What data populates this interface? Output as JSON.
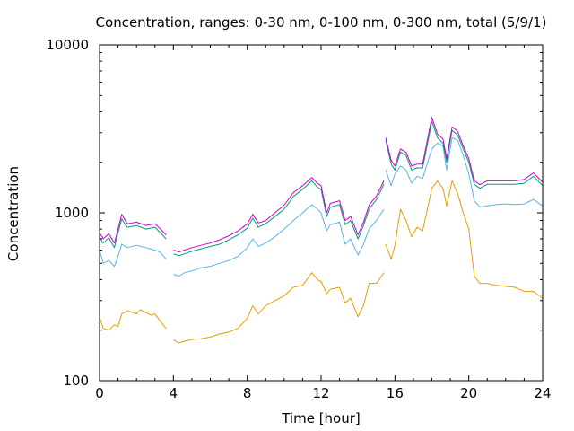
{
  "chart_data": {
    "type": "line",
    "title": "Concentration, ranges: 0-30 nm, 0-100 nm, 0-300 nm, total (5/9/1)",
    "xlabel": "Time [hour]",
    "ylabel": "Concentration",
    "xlim": [
      0,
      24
    ],
    "ylim": [
      100,
      10000
    ],
    "yscale": "log",
    "x_ticks": [
      0,
      4,
      8,
      12,
      16,
      20,
      24
    ],
    "y_ticks": [
      100,
      1000,
      10000
    ],
    "x_tick_labels": [
      "0",
      "4",
      "8",
      "12",
      "16",
      "20",
      "24"
    ],
    "y_tick_labels": [
      "100",
      "1000",
      "10000"
    ],
    "grid": false,
    "legend": "none",
    "series": [
      {
        "color": "#e69f00",
        "segments": [
          [
            [
              0,
              240
            ],
            [
              0.2,
              205
            ],
            [
              0.5,
              200
            ],
            [
              0.8,
              215
            ],
            [
              1,
              210
            ],
            [
              1.2,
              250
            ],
            [
              1.5,
              260
            ],
            [
              1.8,
              255
            ],
            [
              2,
              250
            ],
            [
              2.2,
              265
            ],
            [
              2.5,
              255
            ],
            [
              2.8,
              245
            ],
            [
              3,
              250
            ],
            [
              3.3,
              225
            ],
            [
              3.6,
              205
            ]
          ],
          [
            [
              4,
              175
            ],
            [
              4.3,
              168
            ],
            [
              4.6,
              172
            ],
            [
              5,
              176
            ],
            [
              5.5,
              178
            ],
            [
              6,
              182
            ],
            [
              6.5,
              190
            ],
            [
              7,
              195
            ],
            [
              7.5,
              205
            ],
            [
              8,
              235
            ],
            [
              8.3,
              280
            ],
            [
              8.6,
              250
            ],
            [
              9,
              280
            ],
            [
              9.5,
              300
            ],
            [
              10,
              320
            ],
            [
              10.5,
              360
            ],
            [
              11,
              370
            ],
            [
              11.5,
              440
            ],
            [
              11.8,
              400
            ],
            [
              12,
              390
            ],
            [
              12.3,
              330
            ],
            [
              12.5,
              350
            ],
            [
              13,
              360
            ],
            [
              13.3,
              290
            ],
            [
              13.6,
              310
            ],
            [
              14,
              240
            ],
            [
              14.3,
              280
            ],
            [
              14.6,
              380
            ],
            [
              15,
              380
            ],
            [
              15.4,
              440
            ]
          ],
          [
            [
              15.5,
              650
            ],
            [
              15.8,
              530
            ],
            [
              16,
              640
            ],
            [
              16.3,
              1050
            ],
            [
              16.6,
              900
            ],
            [
              16.9,
              720
            ],
            [
              17.2,
              820
            ],
            [
              17.5,
              780
            ],
            [
              18,
              1400
            ],
            [
              18.3,
              1550
            ],
            [
              18.6,
              1400
            ],
            [
              18.8,
              1100
            ],
            [
              19.1,
              1550
            ],
            [
              19.4,
              1300
            ],
            [
              19.7,
              1000
            ],
            [
              20,
              800
            ],
            [
              20.3,
              420
            ],
            [
              20.6,
              380
            ],
            [
              21,
              380
            ],
            [
              21.5,
              370
            ],
            [
              22,
              365
            ],
            [
              22.5,
              360
            ],
            [
              23,
              340
            ],
            [
              23.5,
              340
            ],
            [
              24,
              310
            ]
          ]
        ]
      },
      {
        "color": "#56b4e9",
        "segments": [
          [
            [
              0,
              600
            ],
            [
              0.2,
              500
            ],
            [
              0.5,
              520
            ],
            [
              0.8,
              480
            ],
            [
              1,
              550
            ],
            [
              1.2,
              650
            ],
            [
              1.5,
              620
            ],
            [
              2,
              640
            ],
            [
              2.5,
              620
            ],
            [
              3,
              600
            ],
            [
              3.3,
              580
            ],
            [
              3.6,
              530
            ]
          ],
          [
            [
              4,
              430
            ],
            [
              4.3,
              420
            ],
            [
              4.6,
              440
            ],
            [
              5,
              450
            ],
            [
              5.5,
              470
            ],
            [
              6,
              480
            ],
            [
              6.5,
              500
            ],
            [
              7,
              520
            ],
            [
              7.5,
              550
            ],
            [
              8,
              620
            ],
            [
              8.3,
              700
            ],
            [
              8.6,
              630
            ],
            [
              9,
              660
            ],
            [
              9.5,
              720
            ],
            [
              10,
              800
            ],
            [
              10.5,
              900
            ],
            [
              11,
              1000
            ],
            [
              11.5,
              1120
            ],
            [
              11.8,
              1050
            ],
            [
              12,
              1000
            ],
            [
              12.3,
              780
            ],
            [
              12.5,
              850
            ],
            [
              13,
              880
            ],
            [
              13.3,
              650
            ],
            [
              13.6,
              700
            ],
            [
              14,
              560
            ],
            [
              14.3,
              650
            ],
            [
              14.6,
              800
            ],
            [
              15,
              900
            ],
            [
              15.4,
              1050
            ]
          ],
          [
            [
              15.5,
              1800
            ],
            [
              15.8,
              1450
            ],
            [
              16,
              1700
            ],
            [
              16.3,
              1900
            ],
            [
              16.6,
              1800
            ],
            [
              16.9,
              1500
            ],
            [
              17.2,
              1650
            ],
            [
              17.5,
              1600
            ],
            [
              18,
              2400
            ],
            [
              18.3,
              2600
            ],
            [
              18.6,
              2500
            ],
            [
              18.8,
              1800
            ],
            [
              19.1,
              2800
            ],
            [
              19.4,
              2700
            ],
            [
              19.7,
              2200
            ],
            [
              20,
              1700
            ],
            [
              20.3,
              1180
            ],
            [
              20.6,
              1080
            ],
            [
              21,
              1100
            ],
            [
              21.5,
              1120
            ],
            [
              22,
              1130
            ],
            [
              22.5,
              1120
            ],
            [
              23,
              1130
            ],
            [
              23.5,
              1200
            ],
            [
              24,
              1100
            ]
          ]
        ]
      },
      {
        "color": "#009e73",
        "segments": [
          [
            [
              0,
              720
            ],
            [
              0.2,
              660
            ],
            [
              0.5,
              710
            ],
            [
              0.8,
              620
            ],
            [
              1,
              760
            ],
            [
              1.2,
              920
            ],
            [
              1.5,
              820
            ],
            [
              2,
              840
            ],
            [
              2.5,
              800
            ],
            [
              3,
              820
            ],
            [
              3.3,
              760
            ],
            [
              3.6,
              700
            ]
          ],
          [
            [
              4,
              570
            ],
            [
              4.3,
              555
            ],
            [
              4.6,
              570
            ],
            [
              5,
              590
            ],
            [
              5.5,
              610
            ],
            [
              6,
              630
            ],
            [
              6.5,
              650
            ],
            [
              7,
              690
            ],
            [
              7.5,
              740
            ],
            [
              8,
              810
            ],
            [
              8.3,
              930
            ],
            [
              8.6,
              820
            ],
            [
              9,
              860
            ],
            [
              9.5,
              950
            ],
            [
              10,
              1050
            ],
            [
              10.5,
              1250
            ],
            [
              11,
              1380
            ],
            [
              11.5,
              1550
            ],
            [
              11.8,
              1420
            ],
            [
              12,
              1380
            ],
            [
              12.3,
              950
            ],
            [
              12.5,
              1080
            ],
            [
              13,
              1120
            ],
            [
              13.3,
              850
            ],
            [
              13.6,
              900
            ],
            [
              14,
              700
            ],
            [
              14.3,
              840
            ],
            [
              14.6,
              1050
            ],
            [
              15,
              1200
            ],
            [
              15.4,
              1480
            ]
          ],
          [
            [
              15.5,
              2700
            ],
            [
              15.8,
              1950
            ],
            [
              16,
              1800
            ],
            [
              16.3,
              2300
            ],
            [
              16.6,
              2200
            ],
            [
              16.9,
              1800
            ],
            [
              17.2,
              1850
            ],
            [
              17.5,
              1850
            ],
            [
              18,
              3500
            ],
            [
              18.3,
              2800
            ],
            [
              18.6,
              2600
            ],
            [
              18.8,
              2000
            ],
            [
              19.1,
              3100
            ],
            [
              19.4,
              2900
            ],
            [
              19.7,
              2400
            ],
            [
              20,
              2000
            ],
            [
              20.3,
              1480
            ],
            [
              20.6,
              1400
            ],
            [
              21,
              1480
            ],
            [
              21.5,
              1480
            ],
            [
              22,
              1480
            ],
            [
              22.5,
              1480
            ],
            [
              23,
              1500
            ],
            [
              23.5,
              1650
            ],
            [
              24,
              1450
            ]
          ]
        ]
      },
      {
        "color": "#cc00cc",
        "segments": [
          [
            [
              0,
              760
            ],
            [
              0.2,
              700
            ],
            [
              0.5,
              750
            ],
            [
              0.8,
              660
            ],
            [
              1,
              800
            ],
            [
              1.2,
              980
            ],
            [
              1.5,
              860
            ],
            [
              2,
              880
            ],
            [
              2.5,
              840
            ],
            [
              3,
              860
            ],
            [
              3.3,
              800
            ],
            [
              3.6,
              740
            ]
          ],
          [
            [
              4,
              600
            ],
            [
              4.3,
              585
            ],
            [
              4.6,
              600
            ],
            [
              5,
              620
            ],
            [
              5.5,
              640
            ],
            [
              6,
              660
            ],
            [
              6.5,
              690
            ],
            [
              7,
              730
            ],
            [
              7.5,
              780
            ],
            [
              8,
              860
            ],
            [
              8.3,
              980
            ],
            [
              8.6,
              870
            ],
            [
              9,
              900
            ],
            [
              9.5,
              1000
            ],
            [
              10,
              1110
            ],
            [
              10.5,
              1320
            ],
            [
              11,
              1450
            ],
            [
              11.5,
              1620
            ],
            [
              11.8,
              1500
            ],
            [
              12,
              1450
            ],
            [
              12.3,
              1000
            ],
            [
              12.5,
              1140
            ],
            [
              13,
              1180
            ],
            [
              13.3,
              900
            ],
            [
              13.6,
              950
            ],
            [
              14,
              740
            ],
            [
              14.3,
              880
            ],
            [
              14.6,
              1110
            ],
            [
              15,
              1260
            ],
            [
              15.4,
              1550
            ]
          ],
          [
            [
              15.5,
              2800
            ],
            [
              15.8,
              2050
            ],
            [
              16,
              1900
            ],
            [
              16.3,
              2400
            ],
            [
              16.6,
              2300
            ],
            [
              16.9,
              1900
            ],
            [
              17.2,
              1950
            ],
            [
              17.5,
              1950
            ],
            [
              18,
              3700
            ],
            [
              18.3,
              2950
            ],
            [
              18.6,
              2750
            ],
            [
              18.8,
              2100
            ],
            [
              19.1,
              3250
            ],
            [
              19.4,
              3050
            ],
            [
              19.7,
              2500
            ],
            [
              20,
              2100
            ],
            [
              20.3,
              1550
            ],
            [
              20.6,
              1470
            ],
            [
              21,
              1550
            ],
            [
              21.5,
              1550
            ],
            [
              22,
              1550
            ],
            [
              22.5,
              1550
            ],
            [
              23,
              1580
            ],
            [
              23.5,
              1730
            ],
            [
              24,
              1520
            ]
          ]
        ]
      }
    ]
  }
}
